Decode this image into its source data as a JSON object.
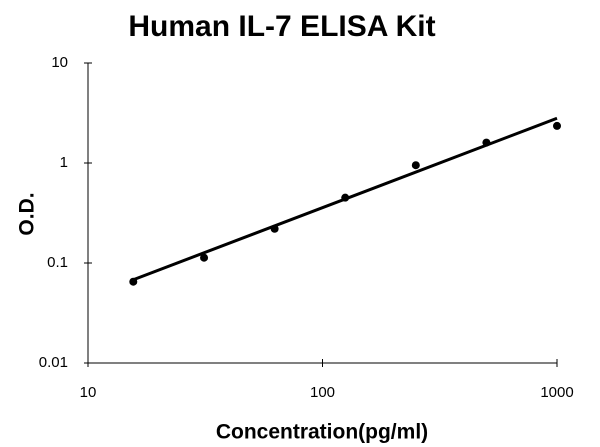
{
  "chart_data": {
    "type": "scatter",
    "title": "Human IL-7 ELISA Kit",
    "x_label": "Concentration(pg/ml)",
    "y_label": "O.D.",
    "x": [
      15.6,
      31.25,
      62.5,
      125,
      250,
      500,
      1000
    ],
    "values": [
      0.065,
      0.113,
      0.22,
      0.45,
      0.95,
      1.6,
      2.35
    ],
    "color": "#000000",
    "trendline": {
      "x": [
        15.6,
        1000
      ],
      "y": [
        0.068,
        2.8
      ],
      "color": "#000000"
    },
    "xlim": [
      10,
      1000
    ],
    "ylim": [
      0.01,
      10
    ],
    "xticks": [
      10,
      100,
      1000
    ],
    "yticks": [
      0.01,
      0.1,
      1,
      10
    ],
    "xscale": "log",
    "yscale": "log",
    "grid": false
  }
}
